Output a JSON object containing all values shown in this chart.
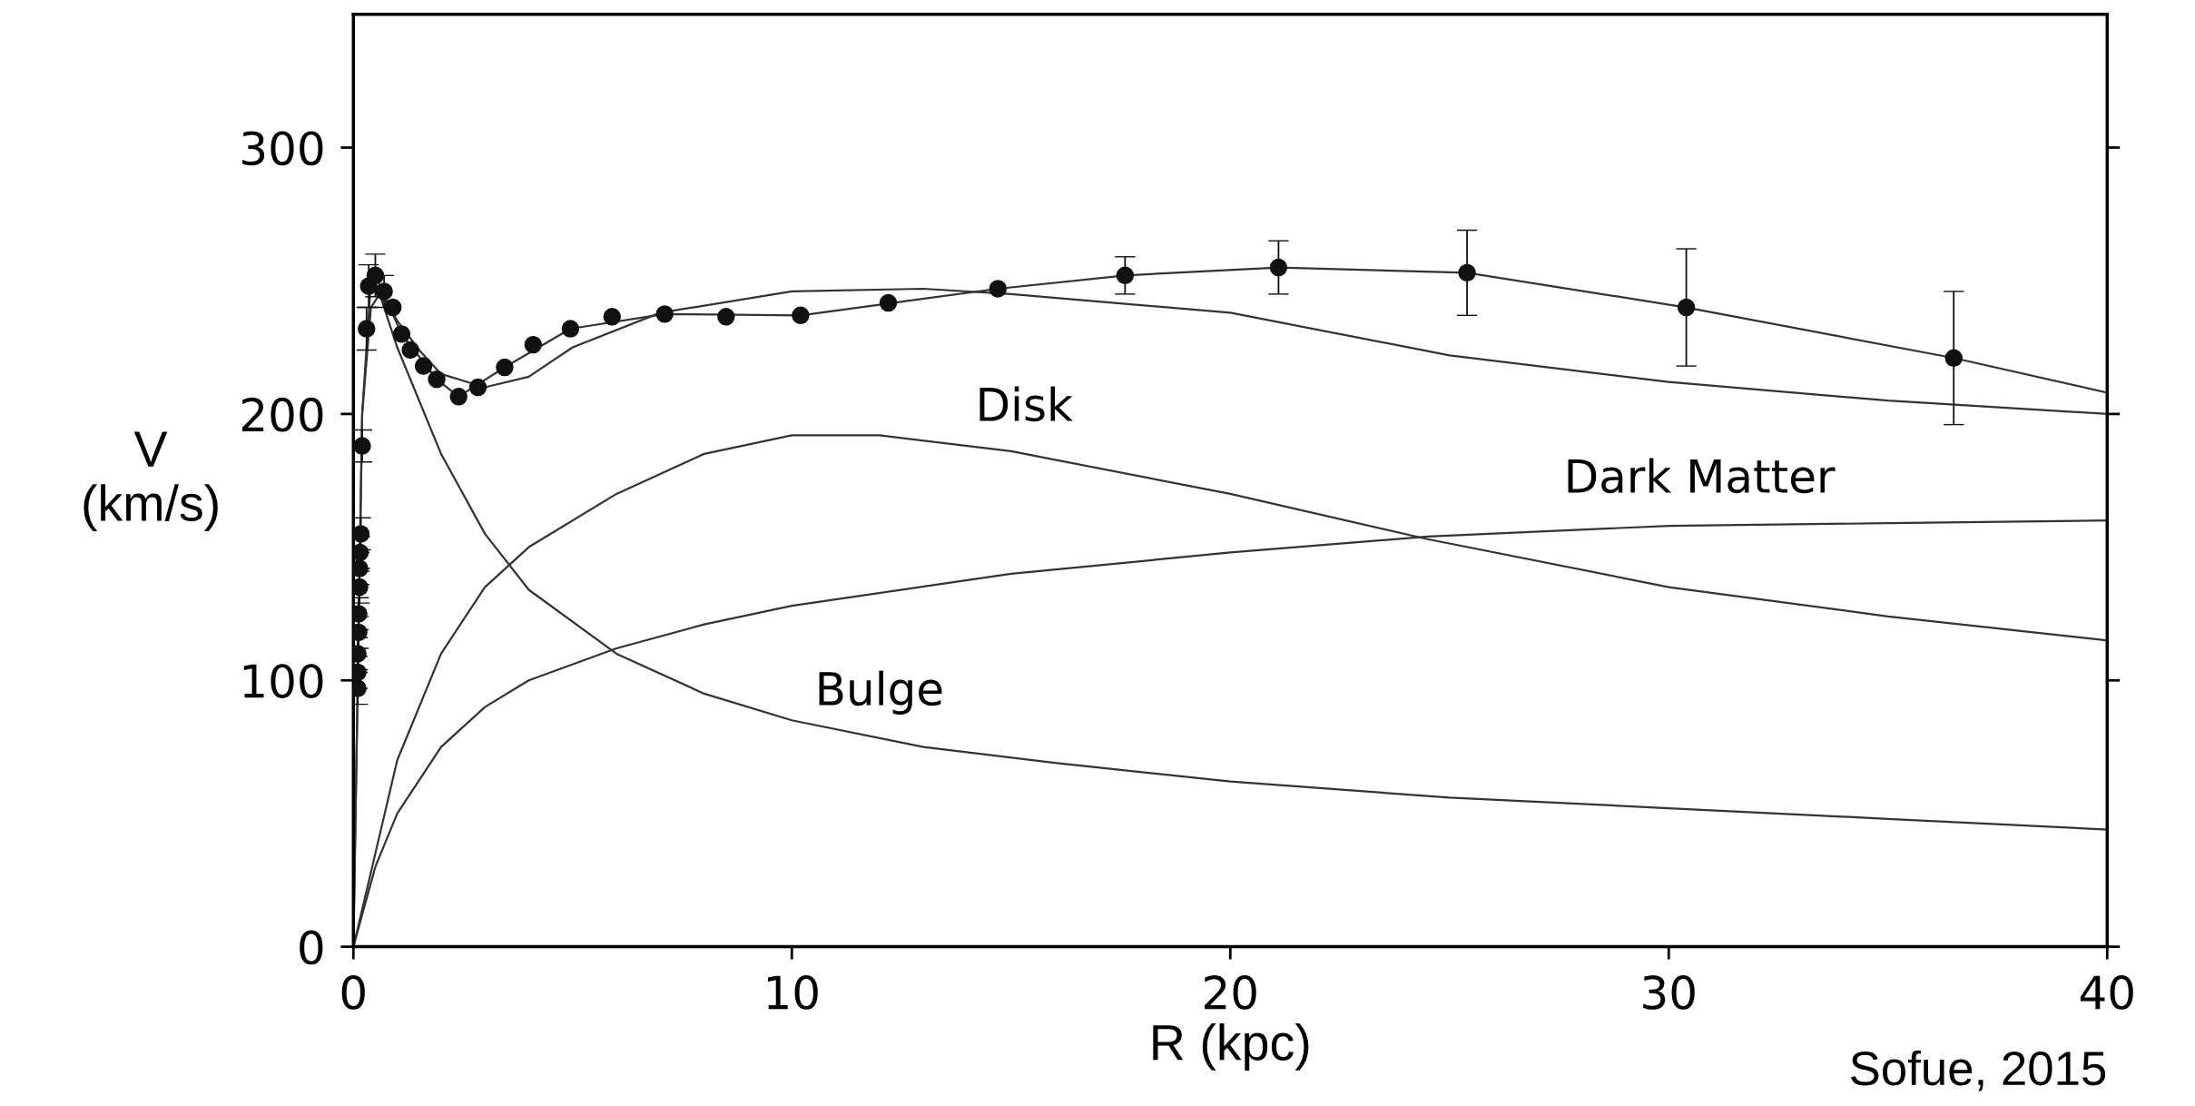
{
  "chart_data": {
    "type": "line",
    "xlabel": "R (kpc)",
    "ylabel": "V\n(km/s)",
    "xlim": [
      0,
      40
    ],
    "ylim": [
      0,
      350
    ],
    "xticks": [
      0,
      10,
      20,
      30,
      40
    ],
    "yticks": [
      0,
      100,
      200,
      300
    ],
    "grid": false,
    "series": [
      {
        "type": "scatter",
        "color": "#111111",
        "marker": "circle",
        "x": [
          0.1,
          0.1,
          0.1,
          0.12,
          0.12,
          0.14,
          0.14,
          0.15,
          0.17,
          0.2,
          0.3,
          0.35,
          0.5,
          0.7,
          0.9,
          1.1,
          1.3,
          1.6,
          1.9,
          2.4,
          2.84,
          3.45,
          4.1,
          4.95,
          5.9,
          7.1,
          8.5,
          10.2,
          12.2,
          14.7,
          17.6,
          21.1,
          25.4,
          30.4,
          36.5
        ],
        "values": [
          97,
          103,
          110,
          118,
          125,
          135,
          142,
          148,
          155,
          188,
          232,
          248,
          252,
          246,
          240,
          230,
          224,
          218,
          213,
          206.5,
          210,
          217.5,
          226,
          232,
          236.5,
          237.5,
          236.5,
          237,
          241.7,
          247,
          252,
          255,
          253,
          240,
          221
        ],
        "errors": [
          6,
          6,
          6,
          6,
          6,
          6,
          6,
          6,
          6,
          6,
          8,
          8,
          8,
          6,
          null,
          null,
          null,
          null,
          null,
          null,
          null,
          null,
          null,
          null,
          null,
          null,
          null,
          null,
          null,
          null,
          7,
          10,
          16,
          22,
          25
        ]
      },
      {
        "color": "#333333",
        "x": [
          0.35,
          0.5,
          1.1,
          1.9,
          2.4,
          3.45,
          4.95,
          7.1,
          10.2,
          14.7,
          17.6,
          21.1,
          25.4,
          30.4,
          36.5,
          40
        ],
        "values": [
          248,
          252,
          230,
          213,
          206.5,
          217.5,
          232,
          237.5,
          237,
          247,
          252,
          255,
          253,
          240,
          221,
          208
        ]
      },
      {
        "color": "#333333",
        "x": [
          0,
          0.2,
          0.4,
          0.7,
          1,
          1.5,
          2,
          3,
          4,
          5,
          7,
          10,
          13,
          15,
          20,
          25,
          30,
          35,
          40
        ],
        "values": [
          0,
          200,
          250,
          243,
          235,
          224,
          215,
          210,
          214,
          225,
          238,
          246,
          247,
          245,
          238,
          222,
          212,
          205,
          200
        ]
      },
      {
        "name": "Bulge",
        "color": "#333333",
        "x": [
          0,
          0.2,
          0.4,
          0.6,
          1,
          1.5,
          2,
          3,
          4,
          6,
          8,
          10,
          13,
          16,
          20,
          25,
          30,
          35,
          40
        ],
        "values": [
          0,
          200,
          240,
          245,
          225,
          205,
          185,
          155,
          134,
          110,
          95,
          85,
          75,
          69,
          62,
          56,
          52,
          48,
          44
        ]
      },
      {
        "name": "Disk",
        "color": "#333333",
        "x": [
          0,
          0.5,
          1,
          2,
          3,
          4,
          6,
          8,
          10,
          12,
          15,
          20,
          24.5,
          30,
          35,
          40
        ],
        "values": [
          0,
          35,
          70,
          110,
          135,
          150,
          170,
          185,
          192,
          192,
          186,
          170,
          153,
          135,
          124,
          115
        ]
      },
      {
        "name": "Dark Matter",
        "color": "#333333",
        "x": [
          0,
          0.5,
          1,
          2,
          3,
          4,
          6,
          8,
          10,
          15,
          20,
          24.5,
          30,
          35,
          40
        ],
        "values": [
          0,
          30,
          50,
          75,
          90,
          100,
          112,
          121,
          128,
          140,
          148,
          154,
          158,
          159,
          160
        ]
      }
    ],
    "annotations": [
      "Sofue, 2015"
    ]
  }
}
